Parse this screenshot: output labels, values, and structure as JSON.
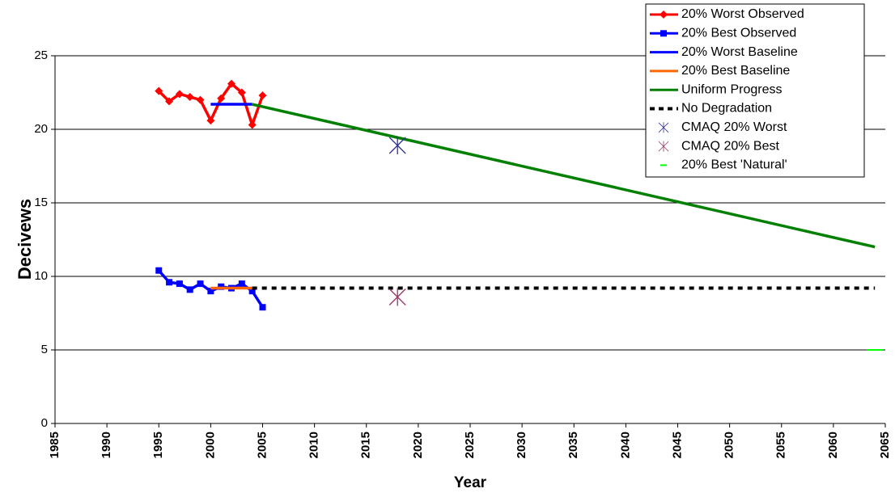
{
  "chart_data": {
    "type": "line",
    "xlabel": "Year",
    "ylabel": "Decivews",
    "xlim": [
      1985,
      2065
    ],
    "xticks": [
      1985,
      1990,
      1995,
      2000,
      2005,
      2010,
      2015,
      2020,
      2025,
      2030,
      2035,
      2040,
      2045,
      2050,
      2055,
      2060,
      2065
    ],
    "ylim": [
      0,
      25
    ],
    "yticks": [
      0,
      5,
      10,
      15,
      20,
      25
    ],
    "grid": true,
    "legend": "top-right",
    "series": [
      {
        "name": "20% Worst Observed",
        "color": "#ff0000",
        "marker": "diamond",
        "x": [
          1995,
          1996,
          1997,
          1998,
          1999,
          2000,
          2001,
          2002,
          2003,
          2004,
          2005
        ],
        "values": [
          22.6,
          21.9,
          22.4,
          22.2,
          22.0,
          20.6,
          22.1,
          23.1,
          22.5,
          20.3,
          22.3
        ]
      },
      {
        "name": "20% Best Observed",
        "color": "#0000ff",
        "marker": "square",
        "x": [
          1995,
          1996,
          1997,
          1998,
          1999,
          2000,
          2001,
          2002,
          2003,
          2004,
          2005
        ],
        "values": [
          10.4,
          9.6,
          9.5,
          9.1,
          9.5,
          9.0,
          9.3,
          9.2,
          9.5,
          9.0,
          7.9
        ]
      },
      {
        "name": "20% Worst Baseline",
        "color": "#0000ff",
        "x": [
          2000,
          2004
        ],
        "values": [
          21.7,
          21.7
        ]
      },
      {
        "name": "20% Best Baseline",
        "color": "#ff6600",
        "x": [
          2000,
          2004
        ],
        "values": [
          9.2,
          9.2
        ]
      },
      {
        "name": "Uniform Progress",
        "color": "#008000",
        "x": [
          2004,
          2064
        ],
        "values": [
          21.7,
          12.0
        ]
      },
      {
        "name": "No Degradation",
        "color": "#000000",
        "dash": true,
        "x": [
          2004,
          2064
        ],
        "values": [
          9.2,
          9.2
        ]
      },
      {
        "name": "CMAQ 20% Worst",
        "color": "#333399",
        "marker": "asterisk",
        "scatter": true,
        "x": [
          2018
        ],
        "values": [
          18.9
        ]
      },
      {
        "name": "CMAQ 20% Best",
        "color": "#993366",
        "marker": "asterisk",
        "scatter": true,
        "x": [
          2018
        ],
        "values": [
          8.6
        ]
      },
      {
        "name": "20% Best 'Natural'",
        "color": "#00ff00",
        "marker": "dash",
        "scatter": true,
        "x": [
          2064
        ],
        "values": [
          5.0
        ]
      }
    ]
  }
}
